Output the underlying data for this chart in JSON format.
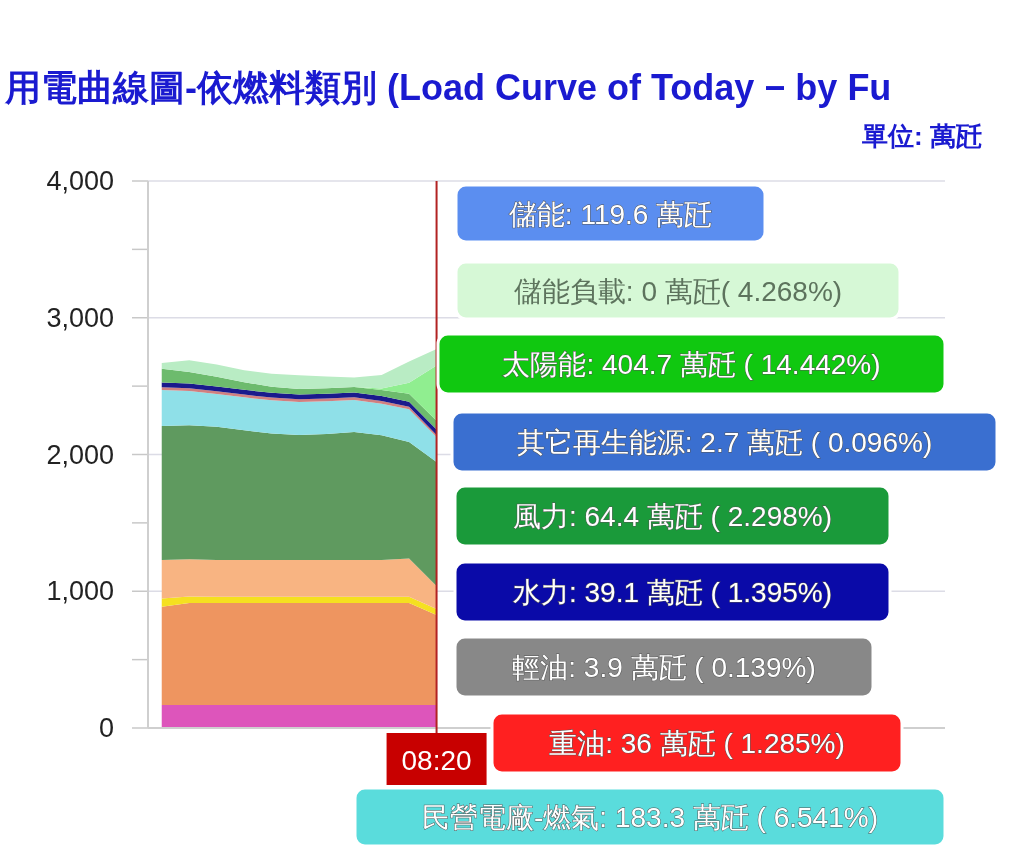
{
  "chart_data": {
    "type": "area",
    "stacked": true,
    "title": "用電曲線圖-依燃料類別 (Load Curve of Today − by Fu",
    "subtitle": "單位: 萬瓩",
    "categories": [
      null,
      null,
      null,
      null,
      null,
      null,
      null,
      null,
      null,
      null,
      "08:20",
      null,
      null,
      null,
      null,
      null,
      null,
      null,
      null,
      null,
      null,
      null,
      null,
      null,
      null,
      null,
      null,
      null,
      null
    ],
    "ylim": [
      0,
      4000
    ],
    "yticks": [
      0,
      {
        "value": 500,
        "label": null
      },
      {
        "value": 1000,
        "label": "1,000"
      },
      {
        "value": 1500,
        "label": null
      },
      {
        "value": 2000,
        "label": "2,000"
      },
      {
        "value": 2500,
        "label": null
      },
      {
        "value": 3000,
        "label": "3,000"
      },
      {
        "value": 3500,
        "label": null
      },
      {
        "value": 4000,
        "label": "4,000"
      }
    ],
    "grid": "y",
    "series": [
      {
        "color": "#dd55bb",
        "values": [
          168,
          168,
          168,
          168,
          168,
          168,
          168,
          168,
          168,
          168,
          168,
          null,
          null,
          null,
          null,
          null,
          null,
          null,
          null,
          null,
          null,
          null,
          null,
          null,
          null,
          null,
          null,
          null,
          null
        ]
      },
      {
        "color": "#ee9560",
        "values": [
          719,
          746,
          746,
          746,
          746,
          746,
          746,
          746,
          746,
          746,
          658,
          null,
          null,
          null,
          null,
          null,
          null,
          null,
          null,
          null,
          null,
          null,
          null,
          null,
          null,
          null,
          null,
          null,
          null
        ]
      },
      {
        "color": "#f5e020",
        "values": [
          60,
          48,
          45,
          45,
          45,
          45,
          45,
          45,
          45,
          45,
          45,
          null,
          null,
          null,
          null,
          null,
          null,
          null,
          null,
          null,
          null,
          null,
          null,
          null,
          null,
          null,
          null,
          null,
          null
        ]
      },
      {
        "color": "#f8b482",
        "values": [
          281,
          272,
          269,
          269,
          269,
          269,
          269,
          269,
          269,
          281,
          167,
          null,
          null,
          null,
          null,
          null,
          null,
          null,
          null,
          null,
          null,
          null,
          null,
          null,
          null,
          null,
          null,
          null,
          null
        ]
      },
      {
        "color": "#5f9a5f",
        "values": [
          980,
          980,
          975,
          950,
          925,
          915,
          922,
          937,
          912,
          851,
          907,
          null,
          null,
          null,
          null,
          null,
          null,
          null,
          null,
          null,
          null,
          null,
          null,
          null,
          null,
          null,
          null,
          null,
          null
        ]
      },
      {
        "color": "#8fe0e8",
        "values": [
          264,
          250,
          240,
          240,
          243,
          241,
          240,
          233,
          232,
          239,
          183.3,
          null,
          null,
          null,
          null,
          null,
          null,
          null,
          null,
          null,
          null,
          null,
          null,
          null,
          null,
          null,
          null,
          null,
          null
        ]
      },
      {
        "color": "#d08080",
        "values": [
          20,
          20,
          20,
          20,
          20,
          20,
          20,
          20,
          20,
          20,
          15,
          null,
          null,
          null,
          null,
          null,
          null,
          null,
          null,
          null,
          null,
          null,
          null,
          null,
          null,
          null,
          null,
          null,
          null
        ]
      },
      {
        "color": "#1a1a8c",
        "values": [
          35,
          35,
          35,
          35,
          35,
          35,
          35,
          35,
          35,
          35,
          39.1,
          null,
          null,
          null,
          null,
          null,
          null,
          null,
          null,
          null,
          null,
          null,
          null,
          null,
          null,
          null,
          null,
          null,
          null
        ]
      },
      {
        "color": "#6dbb6d",
        "values": [
          100,
          85,
          70,
          55,
          45,
          40,
          40,
          40,
          45,
          60,
          64.4,
          null,
          null,
          null,
          null,
          null,
          null,
          null,
          null,
          null,
          null,
          null,
          null,
          null,
          null,
          null,
          null,
          null,
          null
        ]
      },
      {
        "color": "#90ee90",
        "values": [
          0,
          0,
          0,
          0,
          0,
          0,
          0,
          0,
          10,
          80,
          404.7,
          null,
          null,
          null,
          null,
          null,
          null,
          null,
          null,
          null,
          null,
          null,
          null,
          null,
          null,
          null,
          null,
          null,
          null
        ]
      },
      {
        "color": "#b9ecc4",
        "values": [
          42,
          85,
          90,
          88,
          95,
          100,
          85,
          70,
          100,
          155,
          119.6,
          null,
          null,
          null,
          null,
          null,
          null,
          null,
          null,
          null,
          null,
          null,
          null,
          null,
          null,
          null,
          null,
          null,
          null
        ]
      }
    ],
    "ref_lines": [
      {
        "axis": "x",
        "value": "08:20",
        "color": "#b22222"
      }
    ],
    "annotations": [
      "儲能: 119.6 萬瓩",
      "儲能負載: 0 萬瓩( 4.268%)",
      "太陽能: 404.7 萬瓩 ( 14.442%)",
      "其它再生能源: 2.7 萬瓩 ( 0.096%)",
      "風力: 64.4 萬瓩 ( 2.298%)",
      "水力: 39.1 萬瓩 ( 1.395%)",
      "輕油: 3.9 萬瓩 ( 0.139%)",
      "重油: 36 萬瓩 ( 1.285%)",
      "民營電廠-燃氣: 183.3 萬瓩 ( 6.541%)"
    ]
  }
}
